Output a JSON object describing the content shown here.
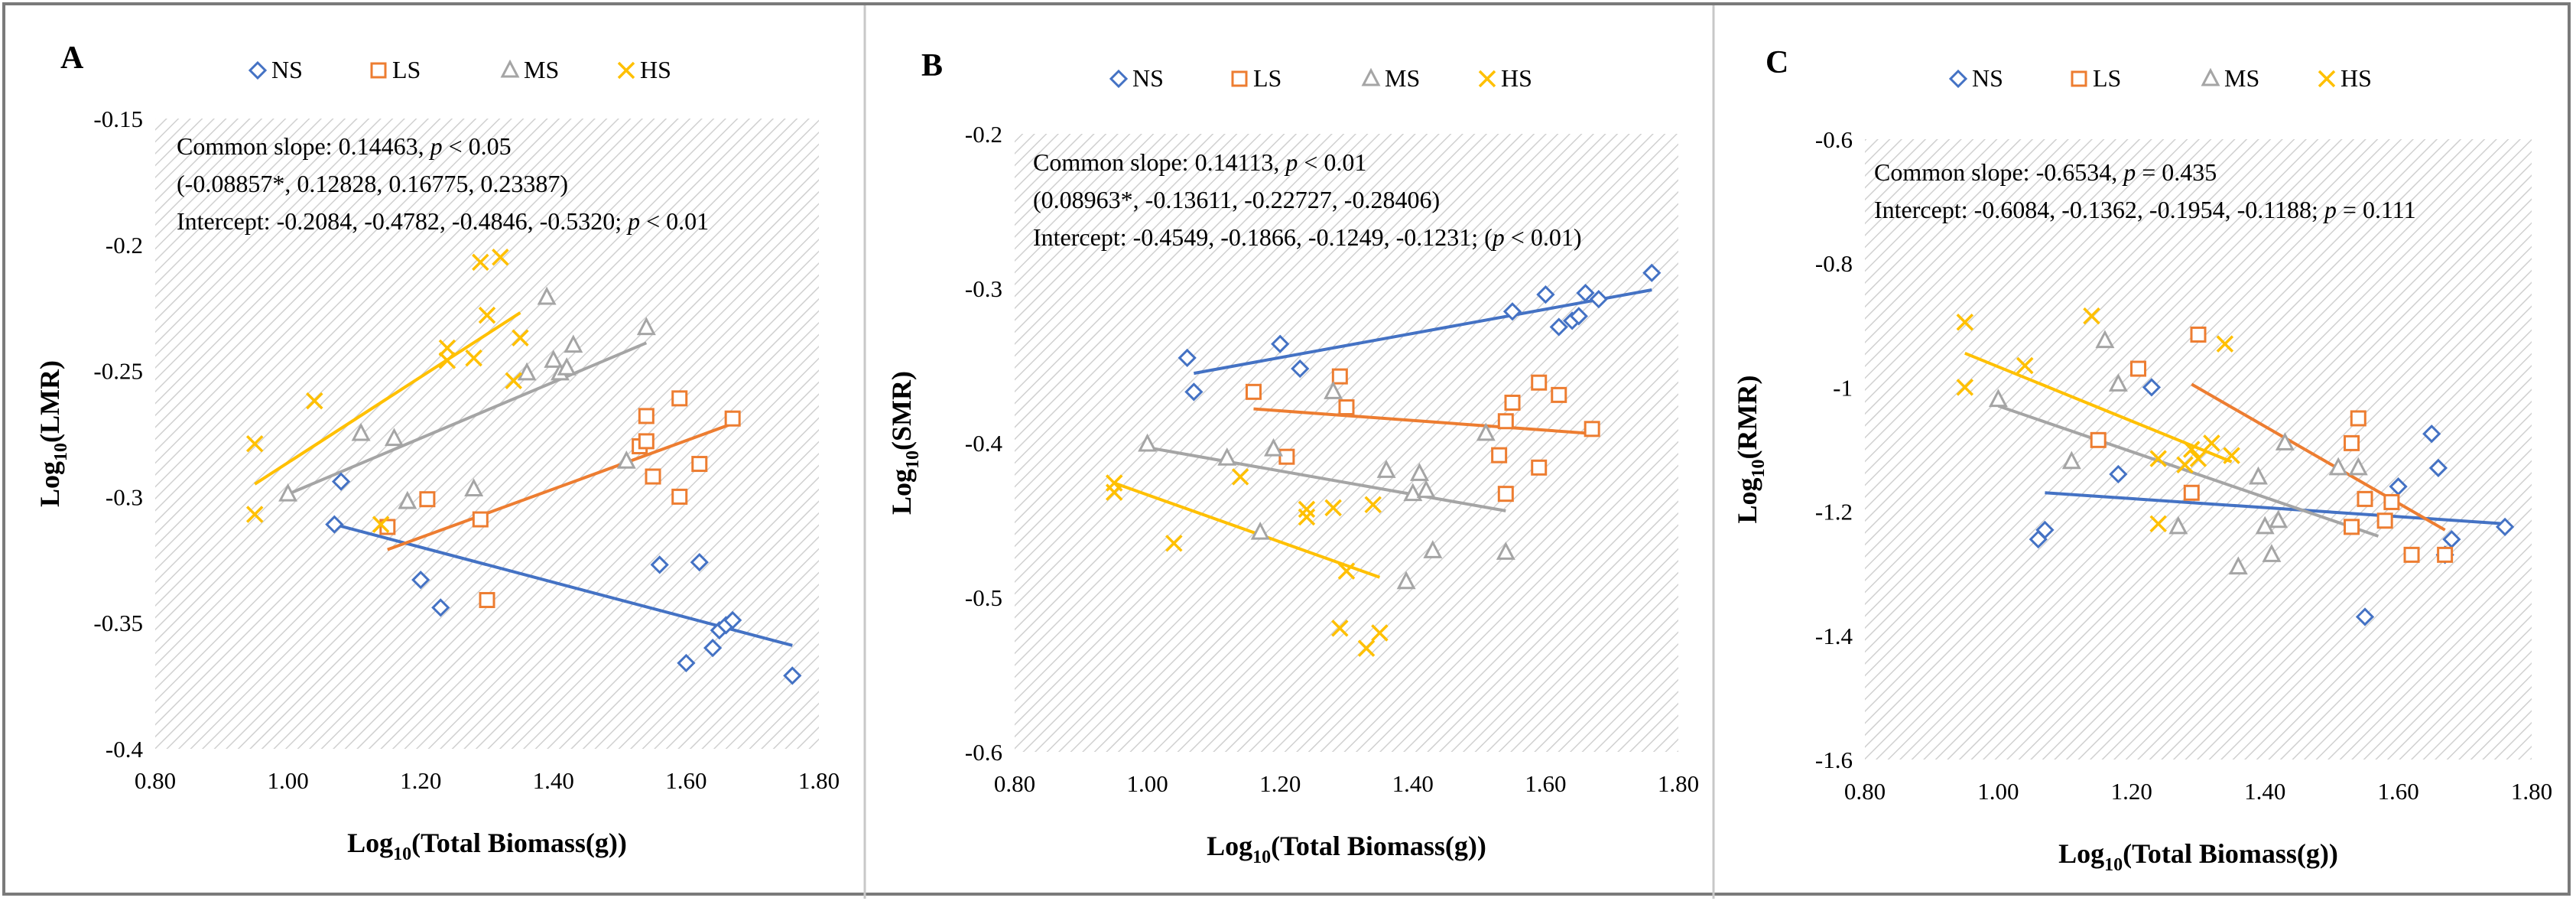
{
  "colors": {
    "NS": "#4472C4",
    "LS": "#ED7D31",
    "MS": "#A5A5A5",
    "HS": "#FFC000",
    "text": "#000000",
    "frame": "#7a7a7a"
  },
  "chart_data": [
    {
      "panel_label": "A",
      "type": "scatter",
      "legend": [
        "NS",
        "LS",
        "MS",
        "HS"
      ],
      "legend_position": "top-center",
      "xlabel_main": "Log",
      "xlabel_sub": "10",
      "xlabel_rest": "(Total Biomass(g))",
      "ylabel_main": "Log",
      "ylabel_sub": "10",
      "ylabel_rest": "(LMR)",
      "xlim": [
        0.8,
        1.8
      ],
      "ylim": [
        -0.4,
        -0.15
      ],
      "xticks": [
        "0.80",
        "1.00",
        "1.20",
        "1.40",
        "1.60",
        "1.80"
      ],
      "yticks": [
        "-0.4",
        "-0.35",
        "-0.3",
        "-0.25",
        "-0.2",
        "-0.15"
      ],
      "annotations": [
        [
          {
            "t": "Common slope: 0.14463, "
          },
          {
            "t": "p",
            "i": true
          },
          {
            "t": " < 0.05"
          }
        ],
        [
          {
            "t": "(-0.08857*, 0.12828, 0.16775, 0.23387)"
          }
        ],
        [
          {
            "t": "Intercept: -0.2084, -0.4782, -0.4846, -0.5320; "
          },
          {
            "t": "p",
            "i": true
          },
          {
            "t": " < 0.01"
          }
        ]
      ],
      "series": [
        {
          "name": "NS",
          "marker": "diamond",
          "trend": [
            [
              1.07,
              -0.311
            ],
            [
              1.76,
              -0.359
            ]
          ],
          "points": [
            [
              1.07,
              -0.311
            ],
            [
              1.08,
              -0.294
            ],
            [
              1.2,
              -0.333
            ],
            [
              1.23,
              -0.344
            ],
            [
              1.56,
              -0.327
            ],
            [
              1.6,
              -0.366
            ],
            [
              1.62,
              -0.326
            ],
            [
              1.64,
              -0.36
            ],
            [
              1.65,
              -0.353
            ],
            [
              1.66,
              -0.351
            ],
            [
              1.67,
              -0.349
            ],
            [
              1.76,
              -0.371
            ]
          ]
        },
        {
          "name": "LS",
          "marker": "square",
          "trend": [
            [
              1.15,
              -0.321
            ],
            [
              1.67,
              -0.271
            ]
          ],
          "points": [
            [
              1.15,
              -0.312
            ],
            [
              1.21,
              -0.301
            ],
            [
              1.29,
              -0.309
            ],
            [
              1.3,
              -0.341
            ],
            [
              1.53,
              -0.28
            ],
            [
              1.54,
              -0.278
            ],
            [
              1.54,
              -0.268
            ],
            [
              1.55,
              -0.292
            ],
            [
              1.59,
              -0.261
            ],
            [
              1.59,
              -0.3
            ],
            [
              1.62,
              -0.287
            ],
            [
              1.67,
              -0.269
            ]
          ]
        },
        {
          "name": "MS",
          "marker": "triangle",
          "trend": [
            [
              1.0,
              -0.299
            ],
            [
              1.54,
              -0.239
            ]
          ],
          "points": [
            [
              1.0,
              -0.299
            ],
            [
              1.11,
              -0.275
            ],
            [
              1.16,
              -0.277
            ],
            [
              1.18,
              -0.302
            ],
            [
              1.28,
              -0.297
            ],
            [
              1.36,
              -0.251
            ],
            [
              1.39,
              -0.221
            ],
            [
              1.4,
              -0.246
            ],
            [
              1.41,
              -0.251
            ],
            [
              1.42,
              -0.249
            ],
            [
              1.43,
              -0.24
            ],
            [
              1.51,
              -0.286
            ],
            [
              1.54,
              -0.233
            ]
          ]
        },
        {
          "name": "HS",
          "marker": "x",
          "trend": [
            [
              0.95,
              -0.295
            ],
            [
              1.35,
              -0.227
            ]
          ],
          "points": [
            [
              0.95,
              -0.279
            ],
            [
              0.95,
              -0.307
            ],
            [
              1.04,
              -0.262
            ],
            [
              1.14,
              -0.311
            ],
            [
              1.24,
              -0.241
            ],
            [
              1.24,
              -0.246
            ],
            [
              1.28,
              -0.245
            ],
            [
              1.29,
              -0.207
            ],
            [
              1.3,
              -0.228
            ],
            [
              1.32,
              -0.205
            ],
            [
              1.34,
              -0.254
            ],
            [
              1.35,
              -0.237
            ]
          ]
        }
      ]
    },
    {
      "panel_label": "B",
      "type": "scatter",
      "legend": [
        "NS",
        "LS",
        "MS",
        "HS"
      ],
      "legend_position": "top-center",
      "xlabel_main": "Log",
      "xlabel_sub": "10",
      "xlabel_rest": "(Total Biomass(g))",
      "ylabel_main": "Log",
      "ylabel_sub": "10",
      "ylabel_rest": "(SMR)",
      "xlim": [
        0.8,
        1.8
      ],
      "ylim": [
        -0.6,
        -0.2
      ],
      "xticks": [
        "0.80",
        "1.00",
        "1.20",
        "1.40",
        "1.60",
        "1.80"
      ],
      "yticks": [
        "-0.6",
        "-0.5",
        "-0.4",
        "-0.3",
        "-0.2"
      ],
      "annotations": [
        [
          {
            "t": "Common slope: 0.14113, "
          },
          {
            "t": "p",
            "i": true
          },
          {
            "t": " < 0.01"
          }
        ],
        [
          {
            "t": "(0.08963*, -0.13611, -0.22727, -0.28406)"
          }
        ],
        [
          {
            "t": "Intercept: -0.4549, -0.1866, -0.1249, -0.1231; ("
          },
          {
            "t": "p",
            "i": true
          },
          {
            "t": " < 0.01)"
          }
        ]
      ],
      "series": [
        {
          "name": "NS",
          "marker": "diamond",
          "trend": [
            [
              1.07,
              -0.355
            ],
            [
              1.76,
              -0.301
            ]
          ],
          "points": [
            [
              1.06,
              -0.345
            ],
            [
              1.07,
              -0.367
            ],
            [
              1.2,
              -0.336
            ],
            [
              1.23,
              -0.352
            ],
            [
              1.55,
              -0.315
            ],
            [
              1.6,
              -0.304
            ],
            [
              1.62,
              -0.325
            ],
            [
              1.64,
              -0.321
            ],
            [
              1.65,
              -0.318
            ],
            [
              1.66,
              -0.303
            ],
            [
              1.68,
              -0.307
            ],
            [
              1.76,
              -0.29
            ]
          ]
        },
        {
          "name": "LS",
          "marker": "square",
          "trend": [
            [
              1.16,
              -0.378
            ],
            [
              1.67,
              -0.394
            ]
          ],
          "points": [
            [
              1.16,
              -0.367
            ],
            [
              1.21,
              -0.409
            ],
            [
              1.29,
              -0.357
            ],
            [
              1.3,
              -0.377
            ],
            [
              1.53,
              -0.408
            ],
            [
              1.54,
              -0.386
            ],
            [
              1.54,
              -0.433
            ],
            [
              1.55,
              -0.374
            ],
            [
              1.59,
              -0.361
            ],
            [
              1.59,
              -0.416
            ],
            [
              1.62,
              -0.369
            ],
            [
              1.67,
              -0.391
            ]
          ]
        },
        {
          "name": "MS",
          "marker": "triangle",
          "trend": [
            [
              1.0,
              -0.403
            ],
            [
              1.54,
              -0.444
            ]
          ],
          "points": [
            [
              1.0,
              -0.401
            ],
            [
              1.12,
              -0.41
            ],
            [
              1.17,
              -0.458
            ],
            [
              1.19,
              -0.404
            ],
            [
              1.28,
              -0.367
            ],
            [
              1.36,
              -0.418
            ],
            [
              1.39,
              -0.49
            ],
            [
              1.4,
              -0.433
            ],
            [
              1.41,
              -0.42
            ],
            [
              1.42,
              -0.431
            ],
            [
              1.43,
              -0.47
            ],
            [
              1.51,
              -0.394
            ],
            [
              1.54,
              -0.471
            ]
          ]
        },
        {
          "name": "HS",
          "marker": "x",
          "trend": [
            [
              0.95,
              -0.426
            ],
            [
              1.35,
              -0.487
            ]
          ],
          "points": [
            [
              0.95,
              -0.426
            ],
            [
              0.95,
              -0.432
            ],
            [
              1.04,
              -0.465
            ],
            [
              1.14,
              -0.422
            ],
            [
              1.24,
              -0.443
            ],
            [
              1.24,
              -0.448
            ],
            [
              1.28,
              -0.442
            ],
            [
              1.29,
              -0.52
            ],
            [
              1.3,
              -0.483
            ],
            [
              1.33,
              -0.533
            ],
            [
              1.34,
              -0.44
            ],
            [
              1.35,
              -0.523
            ]
          ]
        }
      ]
    },
    {
      "panel_label": "C",
      "type": "scatter",
      "legend": [
        "NS",
        "LS",
        "MS",
        "HS"
      ],
      "legend_position": "top-center",
      "xlabel_main": "Log",
      "xlabel_sub": "10",
      "xlabel_rest": "(Total Biomass(g))",
      "ylabel_main": "Log",
      "ylabel_sub": "10",
      "ylabel_rest": "(RMR)",
      "xlim": [
        0.8,
        1.8
      ],
      "ylim": [
        -1.6,
        -0.6
      ],
      "xticks": [
        "0.80",
        "1.00",
        "1.20",
        "1.40",
        "1.60",
        "1.80"
      ],
      "yticks": [
        "-1.6",
        "-1.4",
        "-1.2",
        "-1",
        "-0.8",
        "-0.6"
      ],
      "annotations": [
        [
          {
            "t": "Common slope: -0.6534, "
          },
          {
            "t": "p",
            "i": true
          },
          {
            "t": " = 0.435"
          }
        ],
        [
          {
            "t": "Intercept: -0.6084, -0.1362, -0.1954, -0.1188; "
          },
          {
            "t": "p",
            "i": true
          },
          {
            "t": " = 0.111"
          }
        ]
      ],
      "series": [
        {
          "name": "NS",
          "marker": "diamond",
          "trend": [
            [
              1.07,
              -1.17
            ],
            [
              1.76,
              -1.22
            ]
          ],
          "points": [
            [
              1.06,
              -1.245
            ],
            [
              1.07,
              -1.23
            ],
            [
              1.18,
              -1.14
            ],
            [
              1.23,
              -1.0
            ],
            [
              1.55,
              -1.37
            ],
            [
              1.6,
              -1.16
            ],
            [
              1.65,
              -1.075
            ],
            [
              1.66,
              -1.13
            ],
            [
              1.67,
              -1.27
            ],
            [
              1.68,
              -1.245
            ],
            [
              1.76,
              -1.225
            ]
          ]
        },
        {
          "name": "LS",
          "marker": "square",
          "trend": [
            [
              1.29,
              -0.995
            ],
            [
              1.67,
              -1.23
            ]
          ],
          "points": [
            [
              1.15,
              -1.085
            ],
            [
              1.21,
              -0.97
            ],
            [
              1.29,
              -1.17
            ],
            [
              1.3,
              -0.915
            ],
            [
              1.53,
              -1.225
            ],
            [
              1.53,
              -1.09
            ],
            [
              1.54,
              -1.05
            ],
            [
              1.55,
              -1.18
            ],
            [
              1.58,
              -1.215
            ],
            [
              1.59,
              -1.185
            ],
            [
              1.62,
              -1.27
            ],
            [
              1.67,
              -1.27
            ]
          ]
        },
        {
          "name": "MS",
          "marker": "triangle",
          "trend": [
            [
              1.0,
              -1.03
            ],
            [
              1.57,
              -1.24
            ]
          ],
          "points": [
            [
              1.0,
              -1.02
            ],
            [
              1.11,
              -1.12
            ],
            [
              1.16,
              -0.925
            ],
            [
              1.18,
              -0.995
            ],
            [
              1.27,
              -1.225
            ],
            [
              1.36,
              -1.29
            ],
            [
              1.39,
              -1.145
            ],
            [
              1.4,
              -1.225
            ],
            [
              1.41,
              -1.27
            ],
            [
              1.42,
              -1.215
            ],
            [
              1.43,
              -1.09
            ],
            [
              1.51,
              -1.13
            ],
            [
              1.54,
              -1.13
            ]
          ]
        },
        {
          "name": "HS",
          "marker": "x",
          "trend": [
            [
              0.95,
              -0.945
            ],
            [
              1.35,
              -1.12
            ]
          ],
          "points": [
            [
              0.95,
              -0.895
            ],
            [
              0.95,
              -1.0
            ],
            [
              1.04,
              -0.965
            ],
            [
              1.14,
              -0.885
            ],
            [
              1.24,
              -1.115
            ],
            [
              1.24,
              -1.22
            ],
            [
              1.28,
              -1.125
            ],
            [
              1.29,
              -1.1
            ],
            [
              1.3,
              -1.115
            ],
            [
              1.32,
              -1.09
            ],
            [
              1.34,
              -0.93
            ],
            [
              1.35,
              -1.11
            ]
          ]
        }
      ]
    }
  ]
}
